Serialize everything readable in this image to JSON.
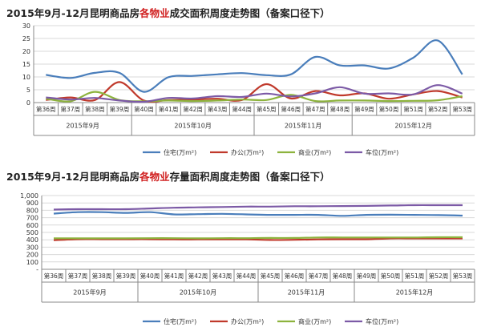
{
  "charts": [
    {
      "title": {
        "pre": "2015年9月-12月昆明商品房",
        "highlight": "各物业",
        "post": "成交面积周度走势图（备案口径下）"
      }
    },
    {
      "title": {
        "pre": "2015年9月-12月昆明商品房",
        "highlight": "各物业",
        "post": "存量面积周度走势图（备案口径下）"
      }
    }
  ],
  "chart_data": [
    {
      "type": "line",
      "title": "2015年9月-12月昆明商品房各物业成交面积周度走势图（备案口径下）",
      "x": [
        "第36周",
        "第37周",
        "第38周",
        "第39周",
        "第40周",
        "第41周",
        "第42周",
        "第43周",
        "第44周",
        "第45周",
        "第46周",
        "第47周",
        "第48周",
        "第49周",
        "第50周",
        "第51周",
        "第52周",
        "第53周"
      ],
      "months": [
        {
          "label": "2015年9月",
          "weeks": 4
        },
        {
          "label": "2015年10月",
          "weeks": 5
        },
        {
          "label": "2015年11月",
          "weeks": 4
        },
        {
          "label": "2015年12月",
          "weeks": 5
        }
      ],
      "ylim": [
        0,
        30
      ],
      "yticks": [
        0,
        5,
        10,
        15,
        20,
        25,
        30
      ],
      "ytick_labels": [
        "0",
        "5",
        "10",
        "15",
        "20",
        "25",
        "30"
      ],
      "grid": true,
      "legend": "bottom",
      "series": [
        {
          "name": "住宅(万m²)",
          "color": "#4a7ebb",
          "values": [
            10.8,
            9.6,
            11.6,
            11.6,
            4.2,
            9.9,
            10.4,
            11.0,
            11.5,
            10.7,
            11.0,
            17.8,
            14.5,
            14.5,
            13.3,
            17.5,
            24.2,
            11.0
          ]
        },
        {
          "name": "办公(万m²)",
          "color": "#c0392b",
          "values": [
            1.0,
            2.0,
            1.0,
            8.0,
            0.8,
            1.0,
            1.2,
            1.5,
            1.0,
            7.2,
            1.6,
            4.5,
            2.8,
            3.6,
            1.5,
            3.2,
            4.5,
            2.0
          ]
        },
        {
          "name": "商业(万m²)",
          "color": "#8db33d",
          "values": [
            1.5,
            0.5,
            4.2,
            1.0,
            0.5,
            0.8,
            0.6,
            0.8,
            1.2,
            1.0,
            3.0,
            0.6,
            0.8,
            0.8,
            0.6,
            0.7,
            0.9,
            2.5
          ]
        },
        {
          "name": "车位(万m²)",
          "color": "#7c5aa6",
          "values": [
            2.0,
            1.2,
            1.8,
            0.8,
            0.3,
            1.8,
            1.6,
            2.5,
            2.2,
            3.5,
            2.4,
            3.6,
            6.0,
            3.5,
            3.6,
            3.2,
            6.8,
            3.5
          ]
        }
      ]
    },
    {
      "type": "line",
      "title": "2015年9月-12月昆明商品房各物业存量面积周度走势图（备案口径下）",
      "x": [
        "第36周",
        "第37周",
        "第38周",
        "第39周",
        "第40周",
        "第41周",
        "第42周",
        "第43周",
        "第44周",
        "第45周",
        "第46周",
        "第47周",
        "第48周",
        "第49周",
        "第50周",
        "第51周",
        "第52周",
        "第53周"
      ],
      "months": [
        {
          "label": "2015年9月",
          "weeks": 4
        },
        {
          "label": "2015年10月",
          "weeks": 5
        },
        {
          "label": "2015年11月",
          "weeks": 4
        },
        {
          "label": "2015年12月",
          "weeks": 5
        }
      ],
      "ylim": [
        0,
        1000
      ],
      "yticks": [
        0,
        100,
        200,
        300,
        400,
        500,
        600,
        700,
        800,
        900,
        1000
      ],
      "ytick_labels": [
        "-",
        "100",
        "200",
        "300",
        "400",
        "500",
        "600",
        "700",
        "800",
        "900",
        "1,000"
      ],
      "grid": true,
      "legend": "bottom",
      "series": [
        {
          "name": "住宅(万m²)",
          "color": "#4a7ebb",
          "values": [
            755,
            775,
            775,
            765,
            775,
            745,
            748,
            752,
            745,
            738,
            738,
            738,
            725,
            738,
            740,
            738,
            735,
            728
          ]
        },
        {
          "name": "办公(万m²)",
          "color": "#c0392b",
          "values": [
            395,
            408,
            408,
            408,
            408,
            405,
            405,
            405,
            405,
            398,
            400,
            405,
            408,
            408,
            418,
            418,
            418,
            418
          ]
        },
        {
          "name": "商业(万m²)",
          "color": "#8db33d",
          "values": [
            420,
            420,
            420,
            420,
            422,
            422,
            420,
            422,
            422,
            425,
            425,
            432,
            432,
            432,
            432,
            432,
            435,
            435
          ]
        },
        {
          "name": "车位(万m²)",
          "color": "#7c5aa6",
          "values": [
            810,
            815,
            815,
            815,
            825,
            835,
            840,
            845,
            850,
            850,
            855,
            855,
            858,
            860,
            865,
            870,
            870,
            870
          ]
        }
      ]
    }
  ]
}
